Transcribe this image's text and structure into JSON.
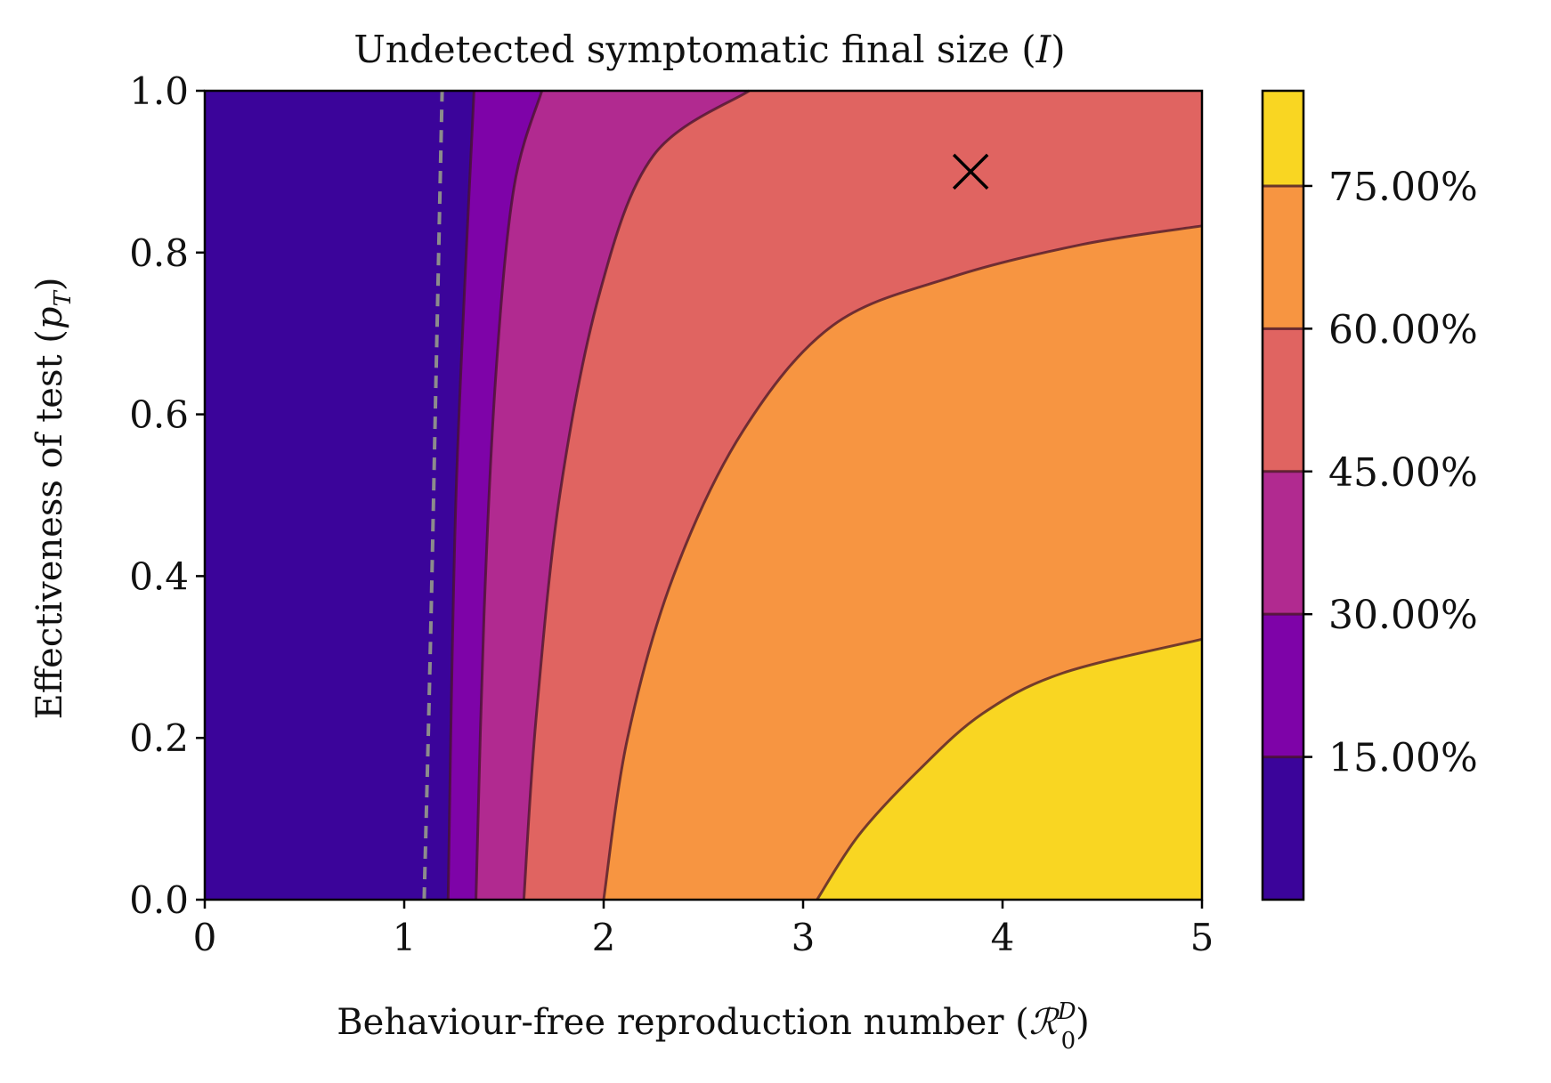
{
  "chart_data": {
    "type": "contour",
    "title_main": "Undetected symptomatic final size (",
    "title_var": "I",
    "title_close": ")",
    "xlabel_main": "Behaviour-free reproduction number (",
    "xlabel_sym": "ℛ",
    "xlabel_sup": "D",
    "xlabel_sub": "0",
    "xlabel_close": ")",
    "ylabel_main": "Effectiveness of test (",
    "ylabel_var": "p",
    "ylabel_sub": "T",
    "ylabel_close": ")",
    "xlim": [
      0,
      5
    ],
    "ylim": [
      0,
      1
    ],
    "x_ticks": [
      0,
      1,
      2,
      3,
      4,
      5
    ],
    "x_tick_labels": [
      "0",
      "1",
      "2",
      "3",
      "4",
      "5"
    ],
    "y_ticks": [
      0.0,
      0.2,
      0.4,
      0.6,
      0.8,
      1.0
    ],
    "y_tick_labels": [
      "0.0",
      "0.2",
      "0.4",
      "0.6",
      "0.8",
      "1.0"
    ],
    "colorbar": {
      "levels": [
        0,
        0.15,
        0.3,
        0.45,
        0.6,
        0.75,
        0.85
      ],
      "tick_values": [
        0.15,
        0.3,
        0.45,
        0.6,
        0.75
      ],
      "tick_labels": [
        "15.00%",
        "30.00%",
        "45.00%",
        "60.00%",
        "75.00%"
      ],
      "band_colors": [
        "#3b049a",
        "#7e03a8",
        "#b12a90",
        "#e06461",
        "#f79541",
        "#f9d622"
      ]
    },
    "contours": [
      {
        "level": 0.15,
        "points": [
          [
            1.22,
            0
          ],
          [
            1.26,
            0.5
          ],
          [
            1.35,
            1.0
          ]
        ]
      },
      {
        "level": 0.3,
        "points": [
          [
            1.36,
            0
          ],
          [
            1.4,
            0.35
          ],
          [
            1.46,
            0.65
          ],
          [
            1.55,
            0.88
          ],
          [
            1.69,
            1.0
          ]
        ]
      },
      {
        "level": 0.45,
        "points": [
          [
            1.6,
            0
          ],
          [
            1.66,
            0.22
          ],
          [
            1.78,
            0.5
          ],
          [
            1.98,
            0.75
          ],
          [
            2.25,
            0.92
          ],
          [
            2.73,
            1.0
          ]
        ]
      },
      {
        "level": 0.6,
        "points": [
          [
            2.0,
            0
          ],
          [
            2.12,
            0.2
          ],
          [
            2.35,
            0.4
          ],
          [
            2.7,
            0.58
          ],
          [
            3.15,
            0.71
          ],
          [
            3.75,
            0.77
          ],
          [
            4.4,
            0.81
          ],
          [
            5.0,
            0.833
          ]
        ]
      },
      {
        "level": 0.75,
        "points": [
          [
            3.07,
            0
          ],
          [
            3.28,
            0.08
          ],
          [
            3.58,
            0.16
          ],
          [
            3.9,
            0.23
          ],
          [
            4.3,
            0.28
          ],
          [
            5.0,
            0.322
          ]
        ]
      }
    ],
    "threshold_line": {
      "style": "dashed",
      "points": [
        [
          1.1,
          0
        ],
        [
          1.13,
          0.3
        ],
        [
          1.16,
          0.65
        ],
        [
          1.19,
          1.0
        ]
      ]
    },
    "marker": {
      "symbol": "x",
      "x": 3.84,
      "y": 0.9
    }
  }
}
